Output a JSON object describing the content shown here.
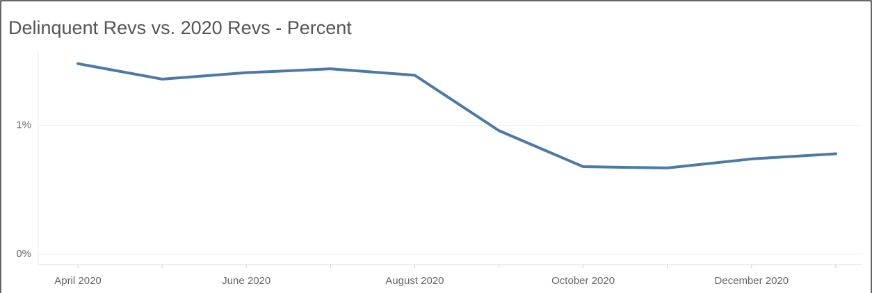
{
  "chart_data": {
    "type": "line",
    "title": "Delinquent Revs vs. 2020 Revs - Percent",
    "categories": [
      "April 2020",
      null,
      "June 2020",
      null,
      "August 2020",
      null,
      "October 2020",
      null,
      "December 2020",
      null
    ],
    "values": [
      1.48,
      1.36,
      1.41,
      1.44,
      1.39,
      0.96,
      0.68,
      0.67,
      0.74,
      0.78
    ],
    "color": "#4e79a7",
    "ylim": [
      -0.08,
      1.57
    ],
    "yticks": [
      {
        "value": 0,
        "label": "0%"
      },
      {
        "value": 1,
        "label": "1%"
      }
    ],
    "grid": true
  }
}
